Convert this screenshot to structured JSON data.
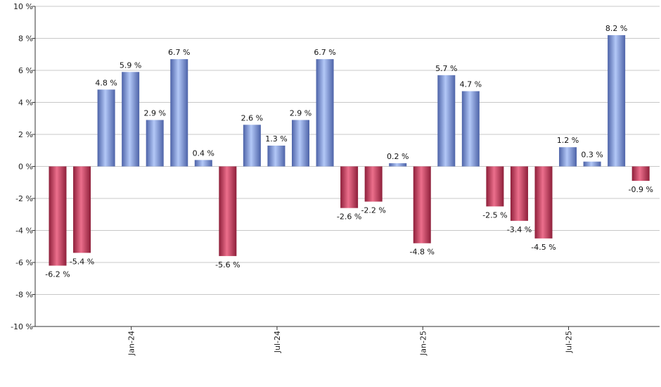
{
  "chart_data": {
    "type": "bar",
    "title": "",
    "xlabel": "",
    "ylabel": "",
    "ylim": [
      -10,
      10
    ],
    "y_ticks": [
      10,
      8,
      6,
      4,
      2,
      0,
      -2,
      -4,
      -6,
      -8,
      -10
    ],
    "y_tick_labels": [
      "10 %",
      "8 %",
      "6 %",
      "4 %",
      "2 %",
      "0 %",
      "-2 %",
      "-4 %",
      "-6 %",
      "-8 %",
      "-10 %"
    ],
    "grid": true,
    "legend": "none",
    "categories": [
      "2023-10",
      "2023-11",
      "2023-12",
      "2024-01",
      "2024-02",
      "2024-03",
      "2024-04",
      "2024-05",
      "2024-06",
      "2024-07",
      "2024-08",
      "2024-09",
      "2024-10",
      "2024-11",
      "2024-12",
      "2025-01",
      "2025-02",
      "2025-03",
      "2025-04",
      "2025-05",
      "2025-06",
      "2025-07",
      "2025-08",
      "2025-09",
      "2025-10"
    ],
    "values": [
      -6.2,
      -5.4,
      4.8,
      5.9,
      2.9,
      6.7,
      0.4,
      -5.6,
      2.6,
      1.3,
      2.9,
      6.7,
      -2.6,
      -2.2,
      0.2,
      -4.8,
      5.7,
      4.7,
      -2.5,
      -3.4,
      -4.5,
      1.2,
      0.3,
      8.2,
      -0.9
    ],
    "value_labels": [
      "-6.2 %",
      "-5.4 %",
      "4.8 %",
      "5.9 %",
      "2.9 %",
      "6.7 %",
      "0.4 %",
      "-5.6 %",
      "2.6 %",
      "1.3 %",
      "2.9 %",
      "6.7 %",
      "-2.6 %",
      "-2.2 %",
      "0.2 %",
      "-4.8 %",
      "5.7 %",
      "4.7 %",
      "-2.5 %",
      "-3.4 %",
      "-4.5 %",
      "1.2 %",
      "0.3 %",
      "8.2 %",
      "-0.9 %"
    ],
    "x_tick_labels": [
      {
        "category": "2024-01",
        "label": "Jan-24"
      },
      {
        "category": "2024-07",
        "label": "Jul-24"
      },
      {
        "category": "2025-01",
        "label": "Jan-25"
      },
      {
        "category": "2025-07",
        "label": "Jul-25"
      }
    ],
    "colors": {
      "positive": "#7f9ce0",
      "positive_light": "#b3c8f7",
      "positive_dark": "#4d63a8",
      "negative": "#c9385a",
      "negative_light": "#ec6f8c",
      "negative_dark": "#8e1f3a",
      "grid": "#c8c8c8",
      "axis": "#333333"
    }
  }
}
